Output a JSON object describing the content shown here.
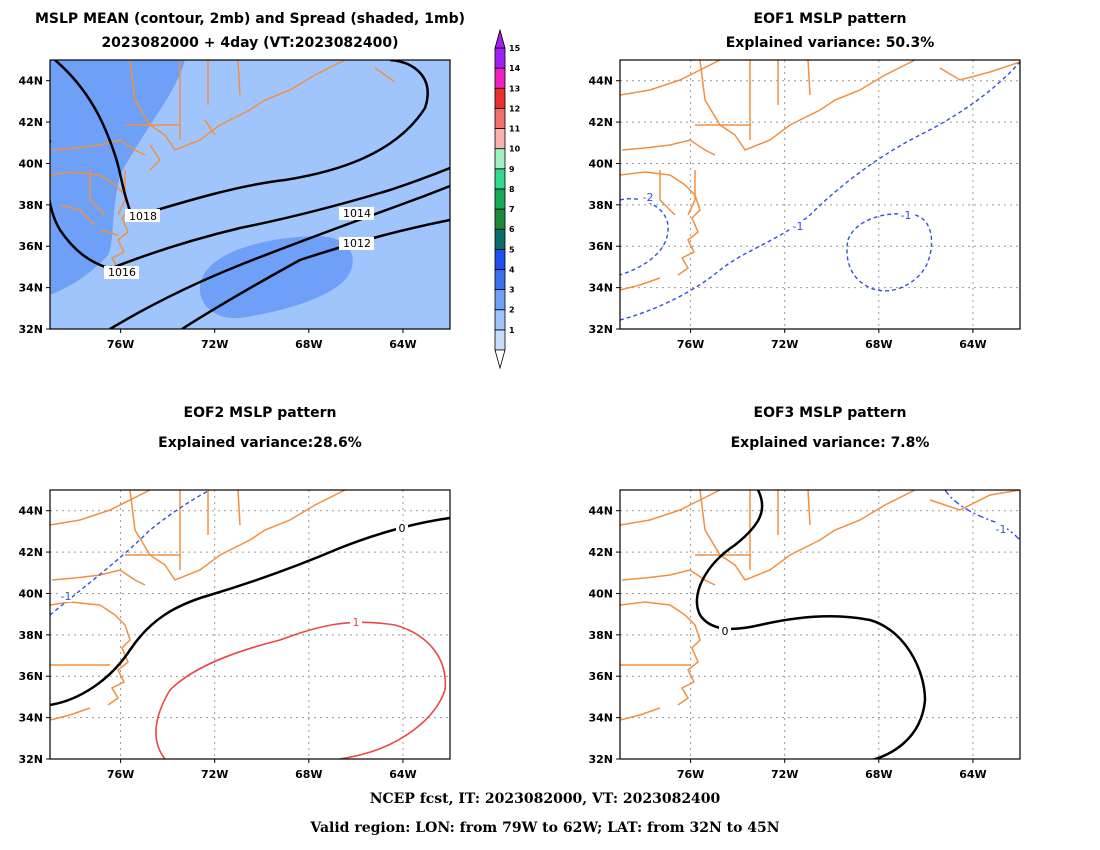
{
  "footer": {
    "line1": "NCEP fcst, IT: 2023082000, VT: 2023082400",
    "line2": "Valid region: LON: from 79W to 62W; LAT: from 32N to 45N"
  },
  "colorbar": {
    "labels": [
      "1",
      "2",
      "3",
      "4",
      "5",
      "6",
      "7",
      "8",
      "9",
      "10",
      "11",
      "12",
      "13",
      "14",
      "15"
    ],
    "colors": [
      "#c8dcfc",
      "#a0c4fc",
      "#6ea0f8",
      "#3c6ef0",
      "#1e4ef0",
      "#0a6e6e",
      "#1a8a3a",
      "#18a85a",
      "#34d890",
      "#a0f0c0",
      "#f8b0b0",
      "#f07070",
      "#e83030",
      "#f020c0",
      "#a020f0"
    ]
  },
  "map_frame": {
    "lon_range": [
      -79,
      -62
    ],
    "lat_range": [
      32,
      45
    ],
    "x_ticks": [
      "76W",
      "72W",
      "68W",
      "64W"
    ],
    "x_tick_values": [
      -76,
      -72,
      -68,
      -64
    ],
    "y_ticks": [
      "32N",
      "34N",
      "36N",
      "38N",
      "40N",
      "42N",
      "44N"
    ],
    "y_tick_values": [
      32,
      34,
      36,
      38,
      40,
      42,
      44
    ]
  },
  "chart_data": [
    {
      "type": "contour",
      "id": "mean",
      "title": "MSLP MEAN (contour, 2mb) and Spread (shaded, 1mb)",
      "subtitle": "2023082000 + 4day (VT:2023082400)",
      "contour_labels": [
        "1018",
        "1016",
        "1014",
        "1012"
      ],
      "spread_shading": [
        {
          "level": 2,
          "color": "#a0c4fc",
          "note_region": "background"
        },
        {
          "level": 3,
          "color": "#6ea0f8",
          "note_region": "west and south-east"
        }
      ]
    },
    {
      "type": "contour",
      "id": "eof1",
      "title": "EOF1 MSLP pattern",
      "subtitle": "Explained variance: 50.3%",
      "contour_labels": [
        "-2",
        "-1",
        "-1"
      ]
    },
    {
      "type": "contour",
      "id": "eof2",
      "title": "EOF2 MSLP pattern",
      "subtitle": "Explained variance:28.6%",
      "contour_labels": [
        "-1",
        "0",
        "1"
      ]
    },
    {
      "type": "contour",
      "id": "eof3",
      "title": "EOF3 MSLP pattern",
      "subtitle": "Explained variance: 7.8%",
      "contour_labels": [
        "0",
        "-1"
      ]
    }
  ]
}
